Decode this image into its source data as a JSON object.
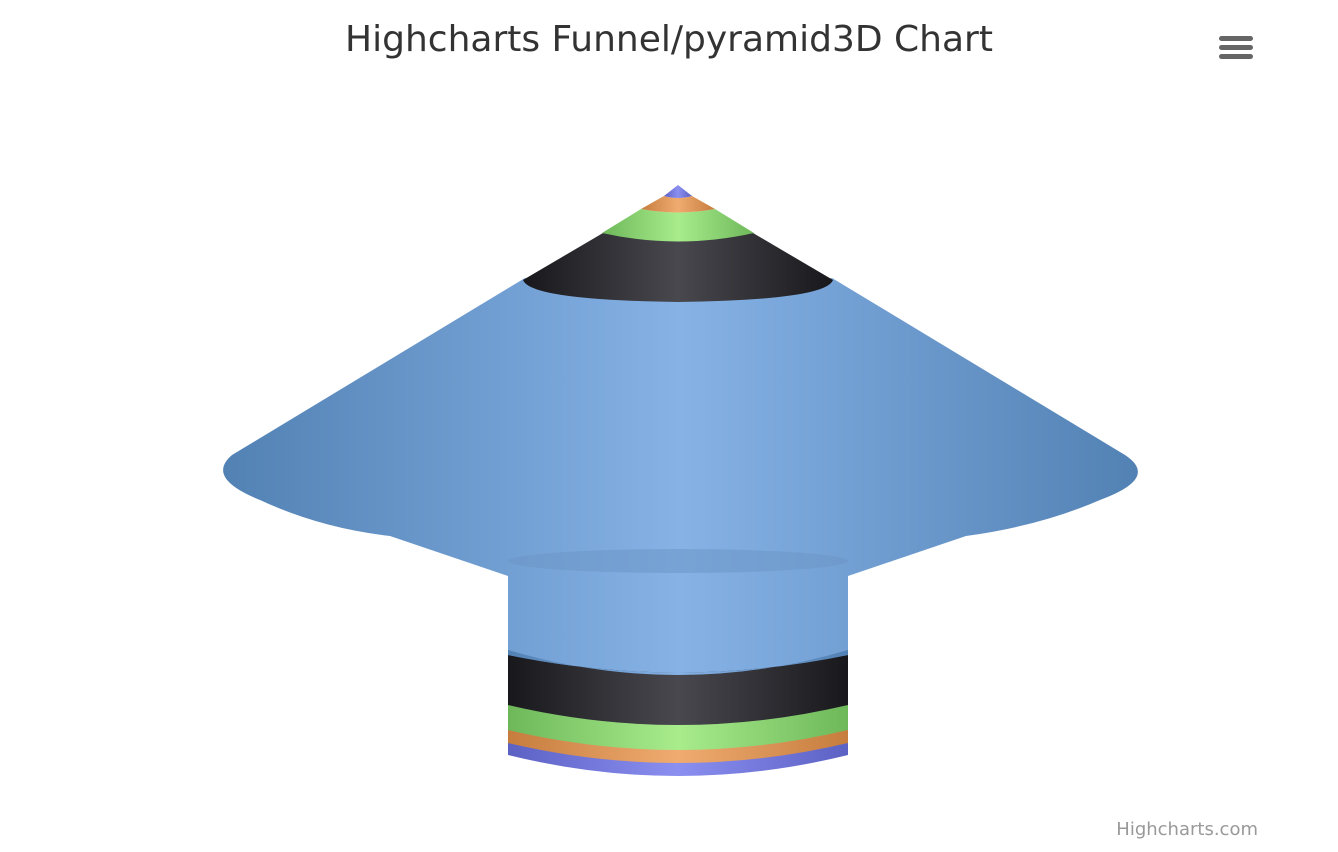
{
  "title": "Highcharts Funnel/pyramid3D Chart",
  "credits": "Highcharts.com",
  "menu": {
    "icon": "hamburger-menu-icon"
  },
  "chart_data": {
    "type": "funnel3d",
    "title": "Highcharts Funnel/pyramid3D Chart",
    "series": [
      {
        "segments": [
          {
            "color": "#7798BF",
            "value": 100
          },
          {
            "color": "#434348",
            "value": 14
          },
          {
            "color": "#90ED7D",
            "value": 5
          },
          {
            "color": "#F7A35C",
            "value": 2
          },
          {
            "color": "#8085E9",
            "value": 1
          }
        ]
      }
    ]
  }
}
